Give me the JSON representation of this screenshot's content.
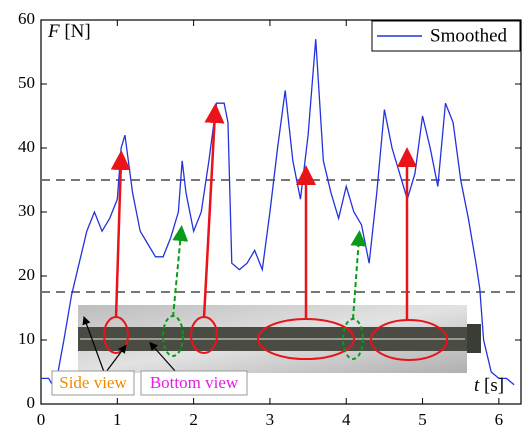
{
  "chart_data": {
    "type": "line",
    "x_label": {
      "symbol": "t",
      "unit": "[s]"
    },
    "y_label": {
      "symbol": "F",
      "unit": "[N]"
    },
    "xlim": [
      0,
      6.29
    ],
    "ylim": [
      0,
      60
    ],
    "xticks": [
      0,
      1,
      2,
      3,
      4,
      5,
      6
    ],
    "yticks": [
      0,
      10,
      20,
      30,
      40,
      50,
      60
    ],
    "reference_lines": [
      35,
      17.5
    ],
    "legend_position": "upper right",
    "annotations": [
      "Side view",
      "Bottom view"
    ],
    "x": [
      0,
      0.1,
      0.15,
      0.2,
      0.3,
      0.4,
      0.5,
      0.6,
      0.7,
      0.8,
      0.9,
      1.0,
      1.05,
      1.1,
      1.2,
      1.3,
      1.4,
      1.5,
      1.6,
      1.7,
      1.8,
      1.85,
      1.9,
      2.0,
      2.1,
      2.2,
      2.3,
      2.4,
      2.45,
      2.5,
      2.6,
      2.7,
      2.8,
      2.9,
      3.0,
      3.1,
      3.2,
      3.3,
      3.4,
      3.5,
      3.6,
      3.7,
      3.8,
      3.9,
      4.0,
      4.1,
      4.2,
      4.3,
      4.4,
      4.5,
      4.6,
      4.7,
      4.8,
      4.9,
      5.0,
      5.1,
      5.2,
      5.3,
      5.4,
      5.5,
      5.6,
      5.7,
      5.75,
      5.8,
      5.9,
      6.0,
      6.1,
      6.2
    ],
    "series": [
      {
        "name": "Smoothed",
        "color": "#2233dd",
        "values": [
          4,
          4,
          3,
          3.5,
          10,
          17,
          22,
          27,
          30,
          27,
          29,
          32,
          40,
          42,
          33,
          27,
          25,
          23,
          23,
          26,
          30,
          38,
          33,
          27,
          30,
          38,
          47,
          47,
          44,
          22,
          21,
          22,
          24,
          21,
          30,
          40,
          49,
          38,
          32,
          42,
          57,
          38,
          33,
          29,
          34,
          30,
          28,
          22,
          33,
          46,
          40,
          36,
          32,
          36,
          45,
          40,
          34,
          47,
          44,
          35,
          29,
          22,
          18,
          10,
          5,
          4,
          4,
          3
        ]
      }
    ]
  }
}
